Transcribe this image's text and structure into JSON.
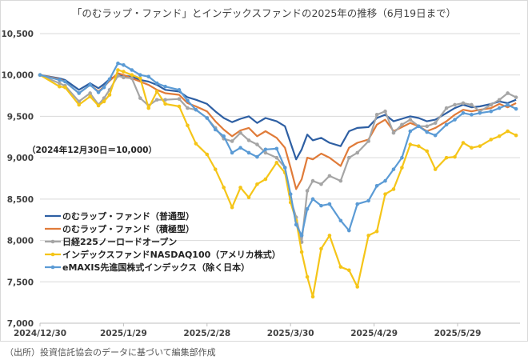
{
  "chart_data": {
    "type": "line",
    "title": "「のむラップ・ファンド」とインデックスファンドの2025年の推移（6月19日まで）",
    "annotation": "（2024年12月30日＝10,000）",
    "xlabel": "",
    "ylabel": "",
    "ylim": [
      7000,
      10500
    ],
    "yticks": [
      10500,
      10000,
      9500,
      9000,
      8500,
      8000,
      7500,
      7000
    ],
    "ytick_labels": [
      "10,500",
      "10,000",
      "9,500",
      "9,000",
      "8,500",
      "8,000",
      "7,500",
      "7,000"
    ],
    "xtick_labels": [
      "2024/12/30",
      "2025/1/29",
      "2025/2/28",
      "2025/3/30",
      "2025/4/29",
      "2025/5/29"
    ],
    "xtick_days": [
      0,
      30,
      60,
      90,
      120,
      150
    ],
    "xlim_days": [
      0,
      172
    ],
    "grid": true,
    "legend_position": "bottom-left",
    "x_days": [
      0,
      7,
      9,
      14,
      18,
      21,
      23,
      25,
      28,
      30,
      33,
      36,
      39,
      42,
      45,
      50,
      53,
      56,
      60,
      63,
      66,
      69,
      72,
      75,
      78,
      81,
      85,
      88,
      90,
      92,
      94,
      96,
      98,
      101,
      104,
      108,
      111,
      114,
      118,
      121,
      124,
      127,
      130,
      133,
      136,
      139,
      142,
      146,
      149,
      152,
      155,
      158,
      162,
      165,
      168,
      171
    ],
    "series": [
      {
        "name": "のむラップ・ファンド（普通型）",
        "color": "#2e5fa3",
        "markers": false,
        "values": [
          10000,
          9960,
          9940,
          9820,
          9900,
          9840,
          9890,
          9950,
          10000,
          9990,
          9980,
          9940,
          9920,
          9880,
          9820,
          9800,
          9730,
          9700,
          9650,
          9560,
          9480,
          9430,
          9470,
          9500,
          9420,
          9480,
          9440,
          9380,
          9180,
          8980,
          9100,
          9280,
          9210,
          9240,
          9180,
          9140,
          9320,
          9360,
          9370,
          9480,
          9520,
          9440,
          9470,
          9500,
          9480,
          9440,
          9460,
          9540,
          9600,
          9640,
          9610,
          9620,
          9650,
          9680,
          9660,
          9700
        ]
      },
      {
        "name": "のむラップ・ファンド（積極型）",
        "color": "#e07b39",
        "markers": false,
        "values": [
          10000,
          9950,
          9920,
          9780,
          9880,
          9800,
          9860,
          9930,
          10020,
          10000,
          9960,
          9920,
          9880,
          9820,
          9780,
          9760,
          9660,
          9620,
          9560,
          9440,
          9340,
          9260,
          9330,
          9360,
          9260,
          9320,
          9240,
          9120,
          8880,
          8620,
          8740,
          9000,
          8980,
          9050,
          9000,
          8900,
          9120,
          9180,
          9220,
          9400,
          9460,
          9320,
          9370,
          9420,
          9380,
          9320,
          9360,
          9440,
          9520,
          9580,
          9560,
          9580,
          9600,
          9650,
          9610,
          9660
        ]
      },
      {
        "name": "日経225ノーロードオープン",
        "color": "#a5a5a5",
        "markers": true,
        "values": [
          10000,
          9900,
          9870,
          9680,
          9780,
          9640,
          9720,
          9820,
          9990,
          9970,
          9960,
          9720,
          9630,
          9700,
          9700,
          9710,
          9600,
          9580,
          9480,
          9360,
          9230,
          9200,
          9300,
          9210,
          9160,
          9060,
          9000,
          8880,
          8500,
          8280,
          7980,
          8600,
          8720,
          8680,
          8780,
          8720,
          9000,
          9060,
          9200,
          9520,
          9560,
          9300,
          9400,
          9460,
          9380,
          9380,
          9420,
          9600,
          9640,
          9660,
          9640,
          9560,
          9640,
          9700,
          9780,
          9730
        ]
      },
      {
        "name": "インデックスファンドNASDAQ100（アメリカ株式）",
        "color": "#f5c518",
        "markers": true,
        "values": [
          10000,
          9860,
          9850,
          9640,
          9740,
          9630,
          9680,
          9760,
          10060,
          10040,
          10000,
          9960,
          9600,
          9800,
          9650,
          9620,
          9390,
          9170,
          9040,
          8860,
          8640,
          8400,
          8640,
          8520,
          8680,
          8740,
          8940,
          8820,
          8460,
          8240,
          7860,
          7560,
          7320,
          7900,
          8060,
          7680,
          7640,
          7440,
          8060,
          8110,
          8560,
          8620,
          8880,
          9160,
          9140,
          9080,
          8860,
          9000,
          9010,
          9180,
          9120,
          9140,
          9220,
          9260,
          9320,
          9270
        ]
      },
      {
        "name": "eMAXIS先進国株式インデックス（除く日本）",
        "color": "#5b9bd5",
        "markers": true,
        "values": [
          10000,
          9940,
          9920,
          9780,
          9880,
          9790,
          9850,
          9950,
          10140,
          10120,
          10060,
          10000,
          9980,
          9900,
          9860,
          9820,
          9690,
          9580,
          9480,
          9340,
          9260,
          9060,
          9120,
          9060,
          9010,
          9100,
          9110,
          8880,
          8560,
          8190,
          8060,
          8380,
          8500,
          8420,
          8440,
          8240,
          8120,
          8440,
          8480,
          8660,
          8720,
          8860,
          9000,
          9320,
          9380,
          9310,
          9270,
          9400,
          9460,
          9540,
          9520,
          9540,
          9560,
          9600,
          9640,
          9590
        ]
      }
    ]
  },
  "source": "（出所）投資信託協会のデータに基づいて編集部作成"
}
